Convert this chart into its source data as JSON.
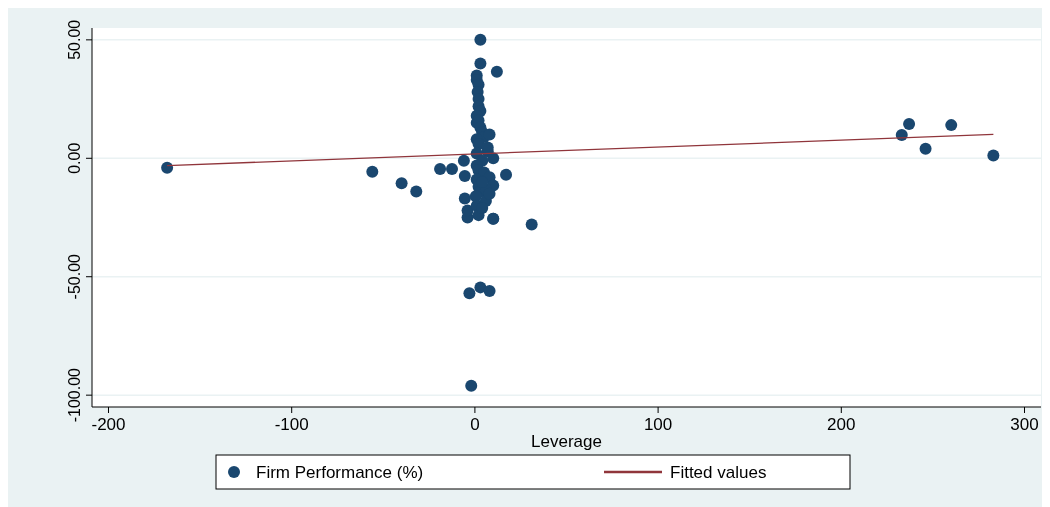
{
  "chart_data": {
    "type": "scatter",
    "xlabel": "Leverage",
    "xlim": [
      -209,
      309
    ],
    "ylim": [
      -105,
      55
    ],
    "xticks": [
      -200,
      -100,
      0,
      100,
      200,
      300
    ],
    "yticks": [
      {
        "value": -100,
        "label": "-100.00"
      },
      {
        "value": -50,
        "label": "-50.00"
      },
      {
        "value": 0,
        "label": "0.00"
      },
      {
        "value": 50,
        "label": "50.00"
      }
    ],
    "grid": "y",
    "legend": "bottom",
    "marker": "circle",
    "series": [
      {
        "name": "Firm Performance (%)",
        "color": "#1a476f",
        "x": [
          -168,
          -56,
          -40,
          -32,
          -19,
          -12.5,
          -6,
          -5.5,
          -5.5,
          -4,
          -4,
          -3,
          -2,
          3,
          3,
          12,
          1,
          1,
          2,
          1.5,
          2,
          2,
          3,
          1,
          1,
          2,
          3,
          4,
          5,
          1,
          2,
          7,
          8,
          1,
          4,
          7,
          10,
          1,
          2,
          5,
          8,
          10,
          1,
          2,
          3,
          6,
          0.5,
          17,
          1,
          6,
          10,
          2,
          4,
          3,
          10,
          31,
          4,
          8,
          233,
          237,
          260,
          246,
          283,
          8
        ],
        "values": [
          -4,
          -5.7,
          -10.5,
          -14,
          -4.5,
          -4.5,
          -1,
          -7.5,
          -17,
          -25,
          -22,
          -57,
          -96,
          50,
          40,
          36.5,
          35,
          33,
          31,
          28,
          25,
          22,
          20,
          18,
          15,
          16,
          13,
          11,
          9,
          8,
          6,
          3,
          10,
          2,
          -1,
          4.6,
          0,
          -3,
          -5,
          -6,
          -8,
          -11.5,
          -9,
          -12,
          -14,
          -13,
          -16,
          -7,
          -20,
          -18,
          -25.5,
          -24,
          -21,
          -54.5,
          -25.5,
          -28,
          -10,
          -15,
          9.8,
          14.5,
          14,
          4,
          1.2,
          -56
        ]
      },
      {
        "name": "Fitted values",
        "type": "line",
        "color": "#90353b",
        "marker": "none",
        "x": [
          -168,
          283
        ],
        "values": [
          -3.1,
          10.1
        ]
      }
    ]
  }
}
